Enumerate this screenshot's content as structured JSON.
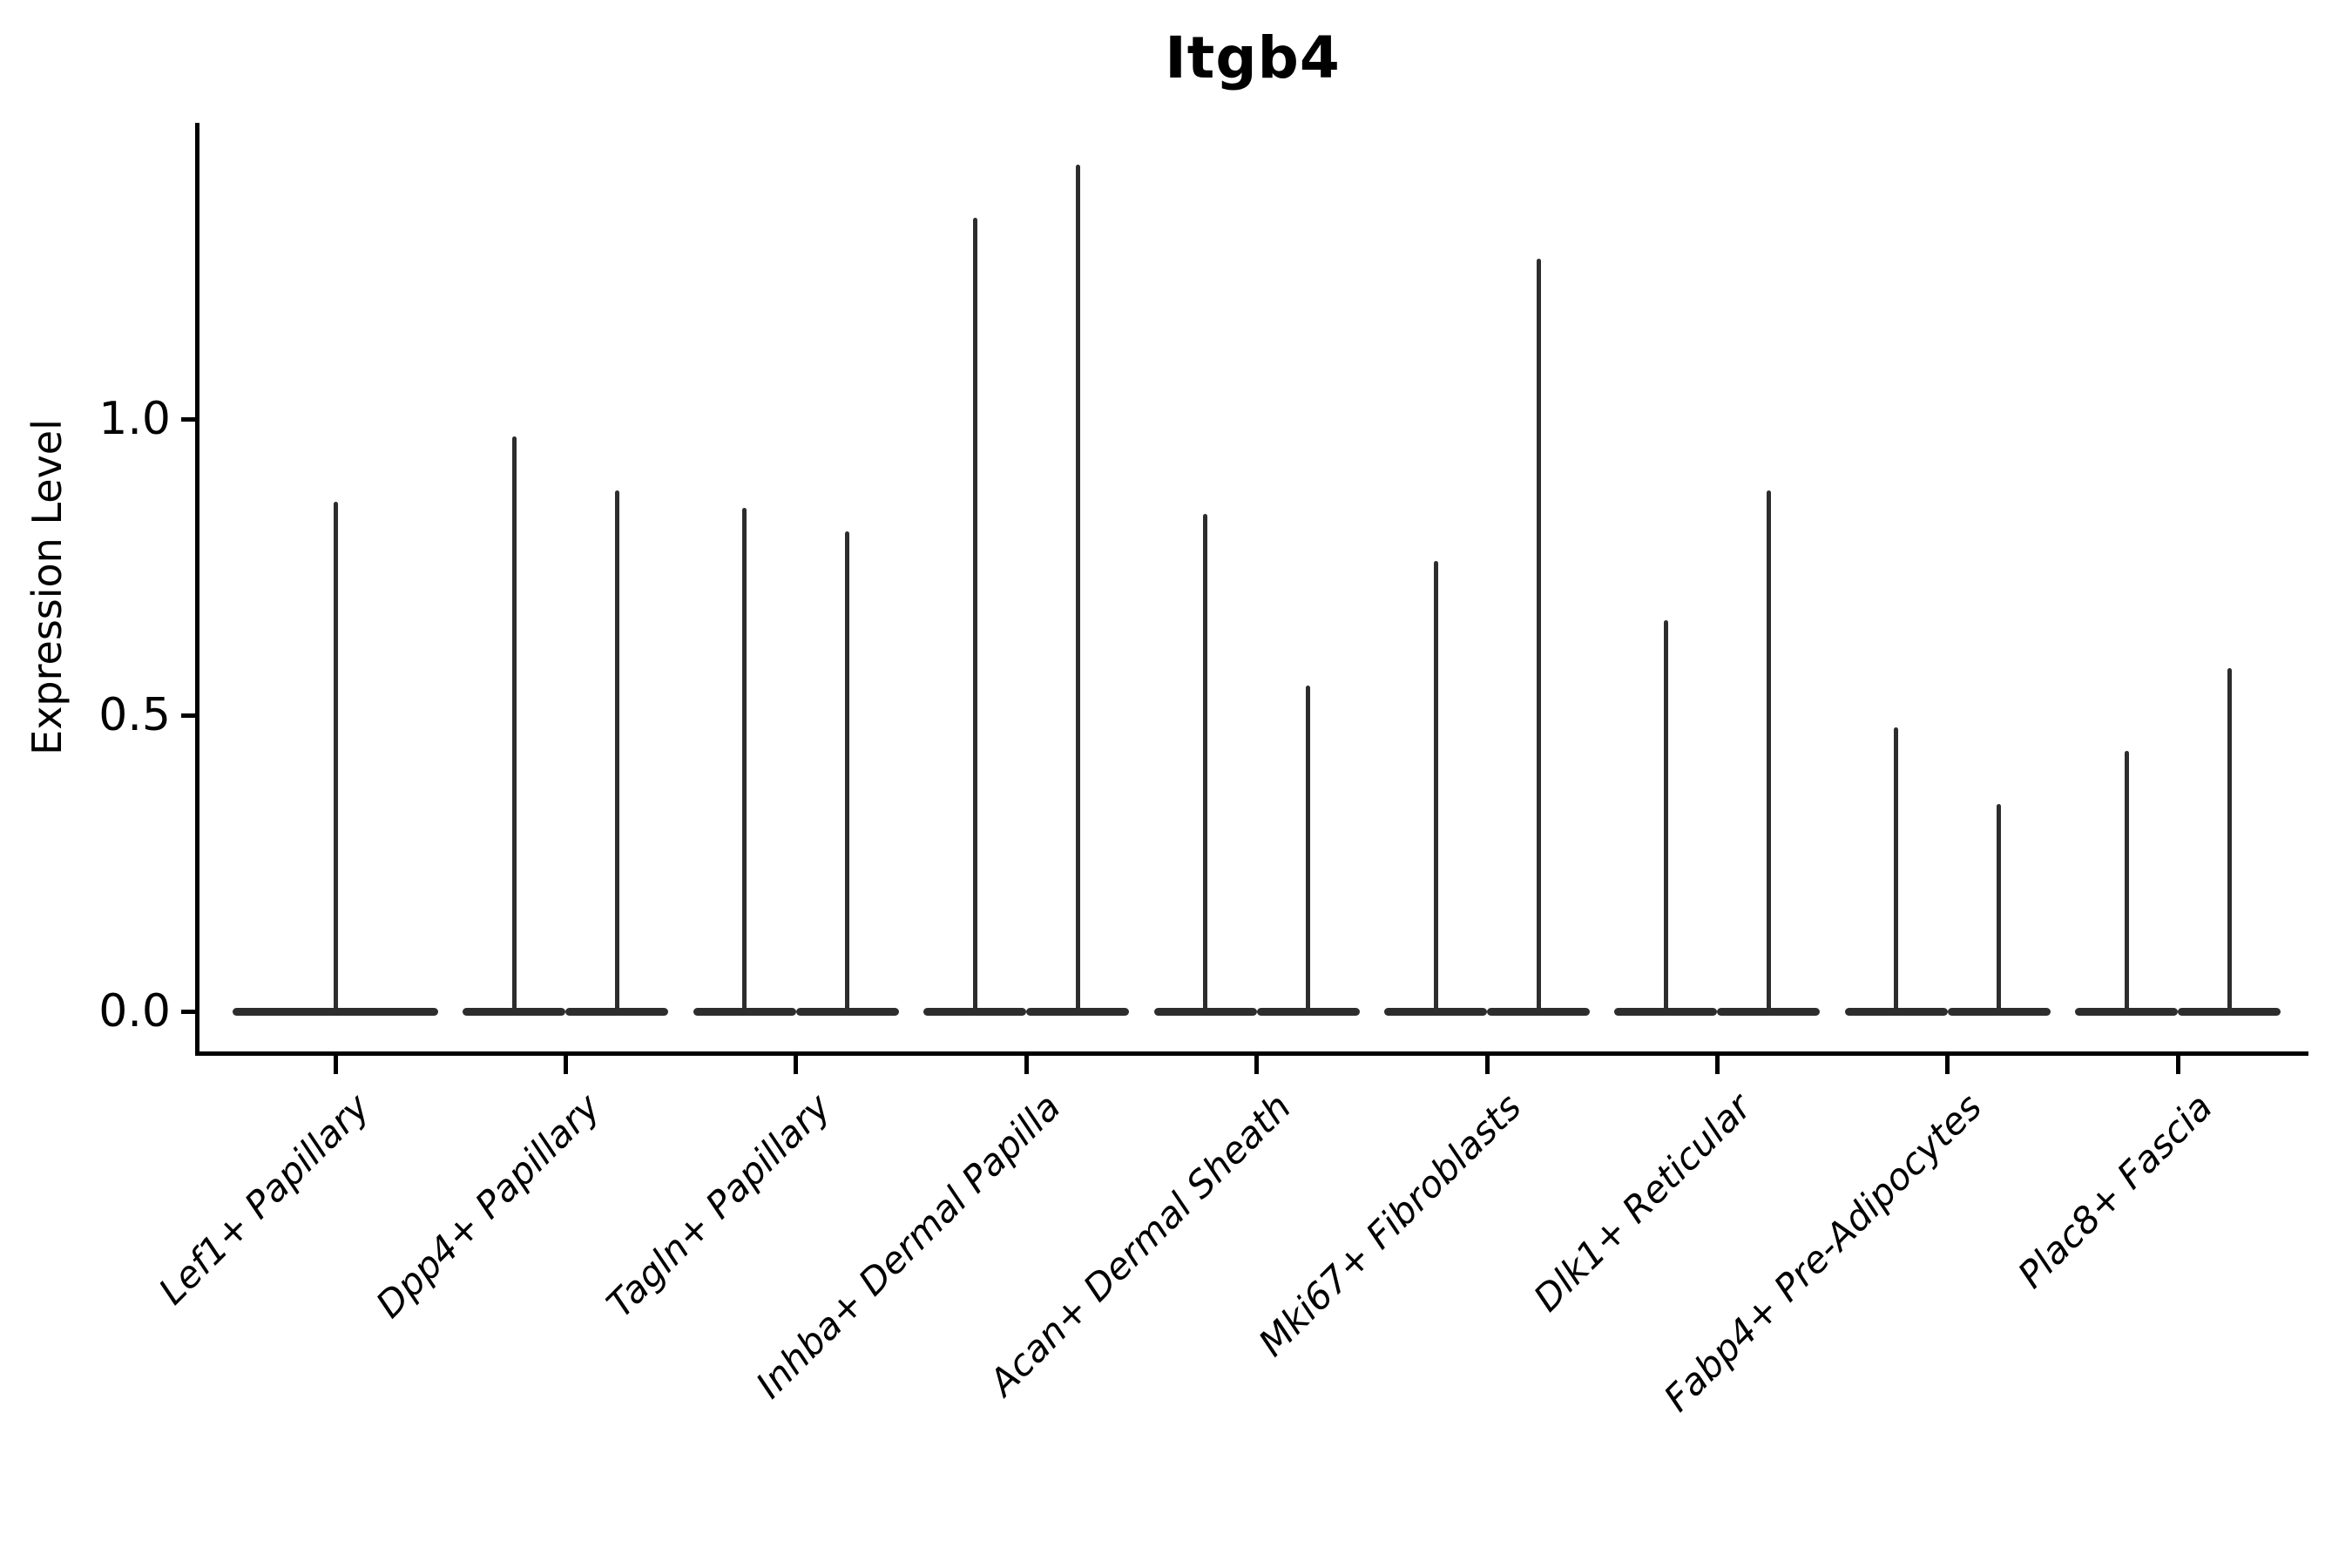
{
  "figure": {
    "title": "Itgb4"
  },
  "style": {
    "violin_color": "#2d2d2d",
    "axis_color": "#000000",
    "text_color": "#000000",
    "background": "#ffffff"
  },
  "chart_data": {
    "type": "violin",
    "title": "Itgb4",
    "xlabel": "",
    "ylabel": "Expression Level",
    "ylim": [
      -0.07,
      1.5
    ],
    "yticks": [
      0.0,
      0.5,
      1.0
    ],
    "ytick_labels": [
      "0.0",
      "0.5",
      "1.0"
    ],
    "grid": false,
    "legend": "none",
    "density_note": "Each violin is collapsed flat at 0 with a narrow spike rising to its maximum expression value",
    "categories": [
      "Lef1+ Papillary",
      "Dpp4+ Papillary",
      "Tagln+ Papillary",
      "Inhba+ Dermal Papilla",
      "Acan+ Dermal Sheath",
      "Mki67+ Fibroblasts",
      "Dlk1+ Reticular",
      "Fabp4+ Pre-Adipocytes",
      "Plac8+ Fascia"
    ],
    "series": [
      {
        "category": "Lef1+ Papillary",
        "violin_max": [
          0.86
        ]
      },
      {
        "category": "Dpp4+ Papillary",
        "violin_max": [
          0.97,
          0.88
        ]
      },
      {
        "category": "Tagln+ Papillary",
        "violin_max": [
          0.85,
          0.81
        ]
      },
      {
        "category": "Inhba+ Dermal Papilla",
        "violin_max": [
          1.34,
          1.43
        ]
      },
      {
        "category": "Acan+ Dermal Sheath",
        "violin_max": [
          0.84,
          0.55
        ]
      },
      {
        "category": "Mki67+ Fibroblasts",
        "violin_max": [
          0.76,
          1.27
        ]
      },
      {
        "category": "Dlk1+ Reticular",
        "violin_max": [
          0.66,
          0.88
        ]
      },
      {
        "category": "Fabp4+ Pre-Adipocytes",
        "violin_max": [
          0.48,
          0.35
        ]
      },
      {
        "category": "Plac8+ Fascia",
        "violin_max": [
          0.44,
          0.58
        ]
      }
    ]
  }
}
